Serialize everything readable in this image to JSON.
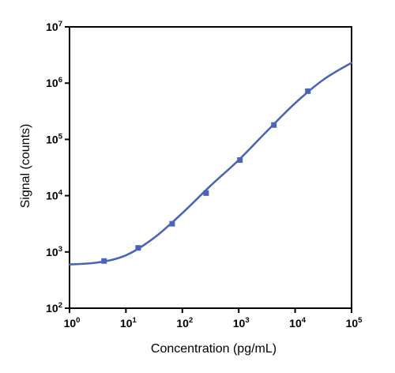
{
  "chart_data": {
    "type": "line",
    "title": "",
    "xlabel": "Concentration (pg/mL)",
    "ylabel": "Signal (counts)",
    "x_scale": "log",
    "y_scale": "log",
    "xlim": [
      1,
      100000
    ],
    "ylim": [
      100,
      10000000
    ],
    "x_ticks": [
      {
        "base": "10",
        "exp": "0"
      },
      {
        "base": "10",
        "exp": "1"
      },
      {
        "base": "10",
        "exp": "2"
      },
      {
        "base": "10",
        "exp": "3"
      },
      {
        "base": "10",
        "exp": "4"
      },
      {
        "base": "10",
        "exp": "5"
      }
    ],
    "y_ticks": [
      {
        "base": "10",
        "exp": "2"
      },
      {
        "base": "10",
        "exp": "3"
      },
      {
        "base": "10",
        "exp": "4"
      },
      {
        "base": "10",
        "exp": "5"
      },
      {
        "base": "10",
        "exp": "6"
      },
      {
        "base": "10",
        "exp": "7"
      }
    ],
    "grid": false,
    "legend": "none",
    "series": [
      {
        "style": "fitted-curve-with-markers",
        "points": [
          {
            "x": 4.1,
            "y": 690
          },
          {
            "x": 16.5,
            "y": 1180
          },
          {
            "x": 66,
            "y": 3170
          },
          {
            "x": 264,
            "y": 11100
          },
          {
            "x": 1050,
            "y": 43000
          },
          {
            "x": 4200,
            "y": 180000
          },
          {
            "x": 16800,
            "y": 720000
          }
        ],
        "fit_curve": [
          {
            "x": 1,
            "y": 600
          },
          {
            "x": 3.16,
            "y": 650
          },
          {
            "x": 10,
            "y": 870
          },
          {
            "x": 31.6,
            "y": 1780
          },
          {
            "x": 100,
            "y": 4900
          },
          {
            "x": 316,
            "y": 15000
          },
          {
            "x": 1000,
            "y": 43000
          },
          {
            "x": 3160,
            "y": 140000
          },
          {
            "x": 10000,
            "y": 440000
          },
          {
            "x": 31600,
            "y": 1150000
          },
          {
            "x": 100000,
            "y": 2300000
          }
        ]
      }
    ]
  },
  "colors": {
    "series": "#4a65b4",
    "axis": "#000000",
    "background": "#ffffff"
  }
}
